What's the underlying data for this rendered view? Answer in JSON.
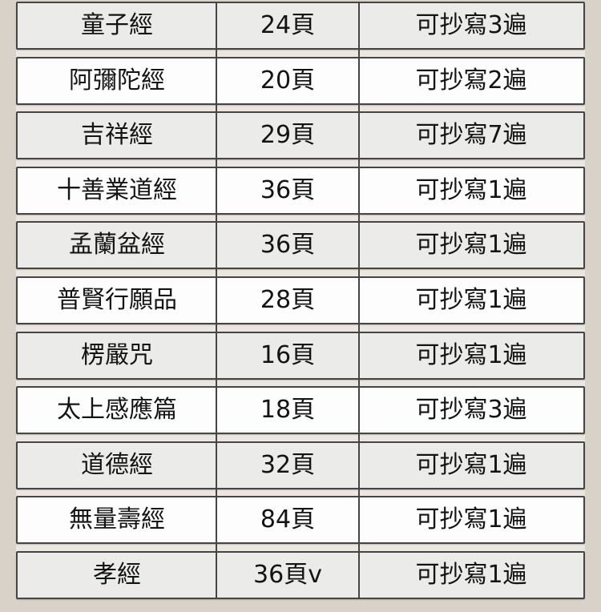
{
  "page": {
    "colors": {
      "page-bg": "#d8d2c9",
      "gap-bg": "#ebe7e0",
      "border-color": "#454545",
      "row-odd": "#ebebe9",
      "row-even": "#fdfdfd",
      "text-color": "#141414"
    }
  },
  "table": {
    "columns": [
      "scripture-name",
      "page-count",
      "copy-count"
    ],
    "rows": [
      {
        "name": "童子經",
        "pages": "24頁",
        "copies": "可抄寫3遍"
      },
      {
        "name": "阿彌陀經",
        "pages": "20頁",
        "copies": "可抄寫2遍"
      },
      {
        "name": "吉祥經",
        "pages": "29頁",
        "copies": "可抄寫7遍"
      },
      {
        "name": "十善業道經",
        "pages": "36頁",
        "copies": "可抄寫1遍"
      },
      {
        "name": "孟蘭盆經",
        "pages": "36頁",
        "copies": "可抄寫1遍"
      },
      {
        "name": "普賢行願品",
        "pages": "28頁",
        "copies": "可抄寫1遍"
      },
      {
        "name": "楞嚴咒",
        "pages": "16頁",
        "copies": "可抄寫1遍"
      },
      {
        "name": "太上感應篇",
        "pages": "18頁",
        "copies": "可抄寫3遍"
      },
      {
        "name": "道德經",
        "pages": "32頁",
        "copies": "可抄寫1遍"
      },
      {
        "name": "無量壽經",
        "pages": "84頁",
        "copies": "可抄寫1遍"
      },
      {
        "name": "孝經",
        "pages": "36頁v",
        "copies": "可抄寫1遍"
      }
    ]
  }
}
